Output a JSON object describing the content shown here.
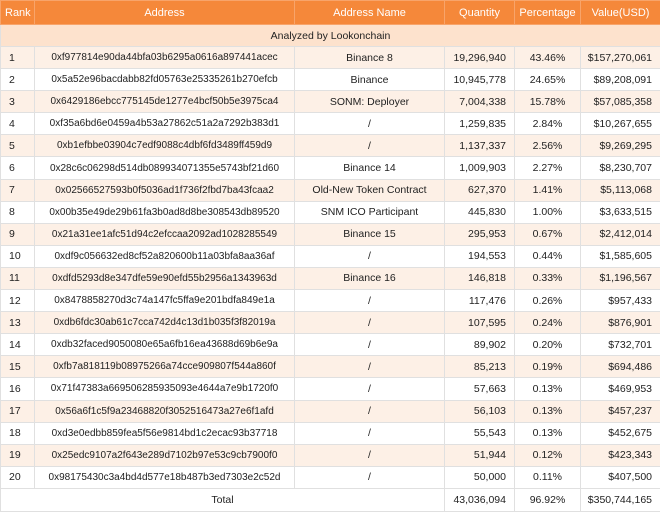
{
  "table": {
    "headers": {
      "rank": "Rank",
      "address": "Address",
      "address_name": "Address Name",
      "quantity": "Quantity",
      "percentage": "Percentage",
      "value": "Value(USD)"
    },
    "subheader": "Analyzed by Lookonchain",
    "rows": [
      {
        "rank": "1",
        "address": "0xf977814e90da44bfa03b6295a0616a897441acec",
        "name": "Binance 8",
        "quantity": "19,296,940",
        "percentage": "43.46%",
        "value": "$157,270,061"
      },
      {
        "rank": "2",
        "address": "0x5a52e96bacdabb82fd05763e25335261b270efcb",
        "name": "Binance",
        "quantity": "10,945,778",
        "percentage": "24.65%",
        "value": "$89,208,091"
      },
      {
        "rank": "3",
        "address": "0x6429186ebcc775145de1277e4bcf50b5e3975ca4",
        "name": "SONM: Deployer",
        "quantity": "7,004,338",
        "percentage": "15.78%",
        "value": "$57,085,358"
      },
      {
        "rank": "4",
        "address": "0xf35a6bd6e0459a4b53a27862c51a2a7292b383d1",
        "name": "/",
        "quantity": "1,259,835",
        "percentage": "2.84%",
        "value": "$10,267,655"
      },
      {
        "rank": "5",
        "address": "0xb1efbbe03904c7edf9088c4dbf6fd3489ff459d9",
        "name": "/",
        "quantity": "1,137,337",
        "percentage": "2.56%",
        "value": "$9,269,295"
      },
      {
        "rank": "6",
        "address": "0x28c6c06298d514db089934071355e5743bf21d60",
        "name": "Binance 14",
        "quantity": "1,009,903",
        "percentage": "2.27%",
        "value": "$8,230,707"
      },
      {
        "rank": "7",
        "address": "0x02566527593b0f5036ad1f736f2fbd7ba43fcaa2",
        "name": "Old-New Token Contract",
        "quantity": "627,370",
        "percentage": "1.41%",
        "value": "$5,113,068"
      },
      {
        "rank": "8",
        "address": "0x00b35e49de29b61fa3b0ad8d8be308543db89520",
        "name": "SNM ICO Participant",
        "quantity": "445,830",
        "percentage": "1.00%",
        "value": "$3,633,515"
      },
      {
        "rank": "9",
        "address": "0x21a31ee1afc51d94c2efccaa2092ad1028285549",
        "name": "Binance 15",
        "quantity": "295,953",
        "percentage": "0.67%",
        "value": "$2,412,014"
      },
      {
        "rank": "10",
        "address": "0xdf9c056632ed8cf52a820600b11a03bfa8aa36af",
        "name": "/",
        "quantity": "194,553",
        "percentage": "0.44%",
        "value": "$1,585,605"
      },
      {
        "rank": "11",
        "address": "0xdfd5293d8e347dfe59e90efd55b2956a1343963d",
        "name": "Binance 16",
        "quantity": "146,818",
        "percentage": "0.33%",
        "value": "$1,196,567"
      },
      {
        "rank": "12",
        "address": "0x8478858270d3c74a147fc5ffa9e201bdfa849e1a",
        "name": "/",
        "quantity": "117,476",
        "percentage": "0.26%",
        "value": "$957,433"
      },
      {
        "rank": "13",
        "address": "0xdb6fdc30ab61c7cca742d4c13d1b035f3f82019a",
        "name": "/",
        "quantity": "107,595",
        "percentage": "0.24%",
        "value": "$876,901"
      },
      {
        "rank": "14",
        "address": "0xdb32faced9050080e65a6fb16ea43688d69b6e9a",
        "name": "/",
        "quantity": "89,902",
        "percentage": "0.20%",
        "value": "$732,701"
      },
      {
        "rank": "15",
        "address": "0xfb7a818119b08975266a74cce909807f544a860f",
        "name": "/",
        "quantity": "85,213",
        "percentage": "0.19%",
        "value": "$694,486"
      },
      {
        "rank": "16",
        "address": "0x71f47383a669506285935093e4644a7e9b1720f0",
        "name": "/",
        "quantity": "57,663",
        "percentage": "0.13%",
        "value": "$469,953"
      },
      {
        "rank": "17",
        "address": "0x56a6f1c5f9a23468820f3052516473a27e6f1afd",
        "name": "/",
        "quantity": "56,103",
        "percentage": "0.13%",
        "value": "$457,237"
      },
      {
        "rank": "18",
        "address": "0xd3e0edbb859fea5f56e9814bd1c2ecac93b37718",
        "name": "/",
        "quantity": "55,543",
        "percentage": "0.13%",
        "value": "$452,675"
      },
      {
        "rank": "19",
        "address": "0x25edc9107a2f643e289d7102b97e53c9cb7900f0",
        "name": "/",
        "quantity": "51,944",
        "percentage": "0.12%",
        "value": "$423,343"
      },
      {
        "rank": "20",
        "address": "0x98175430c3a4bd4d577e18b487b3ed7303e2c52d",
        "name": "/",
        "quantity": "50,000",
        "percentage": "0.11%",
        "value": "$407,500"
      }
    ],
    "total": {
      "label": "Total",
      "quantity": "43,036,094",
      "percentage": "96.92%",
      "value": "$350,744,165"
    }
  },
  "colors": {
    "header_bg": "#f5883a",
    "subheader_bg": "#fde2cd",
    "row_alt_bg": "#fdf0e6"
  }
}
